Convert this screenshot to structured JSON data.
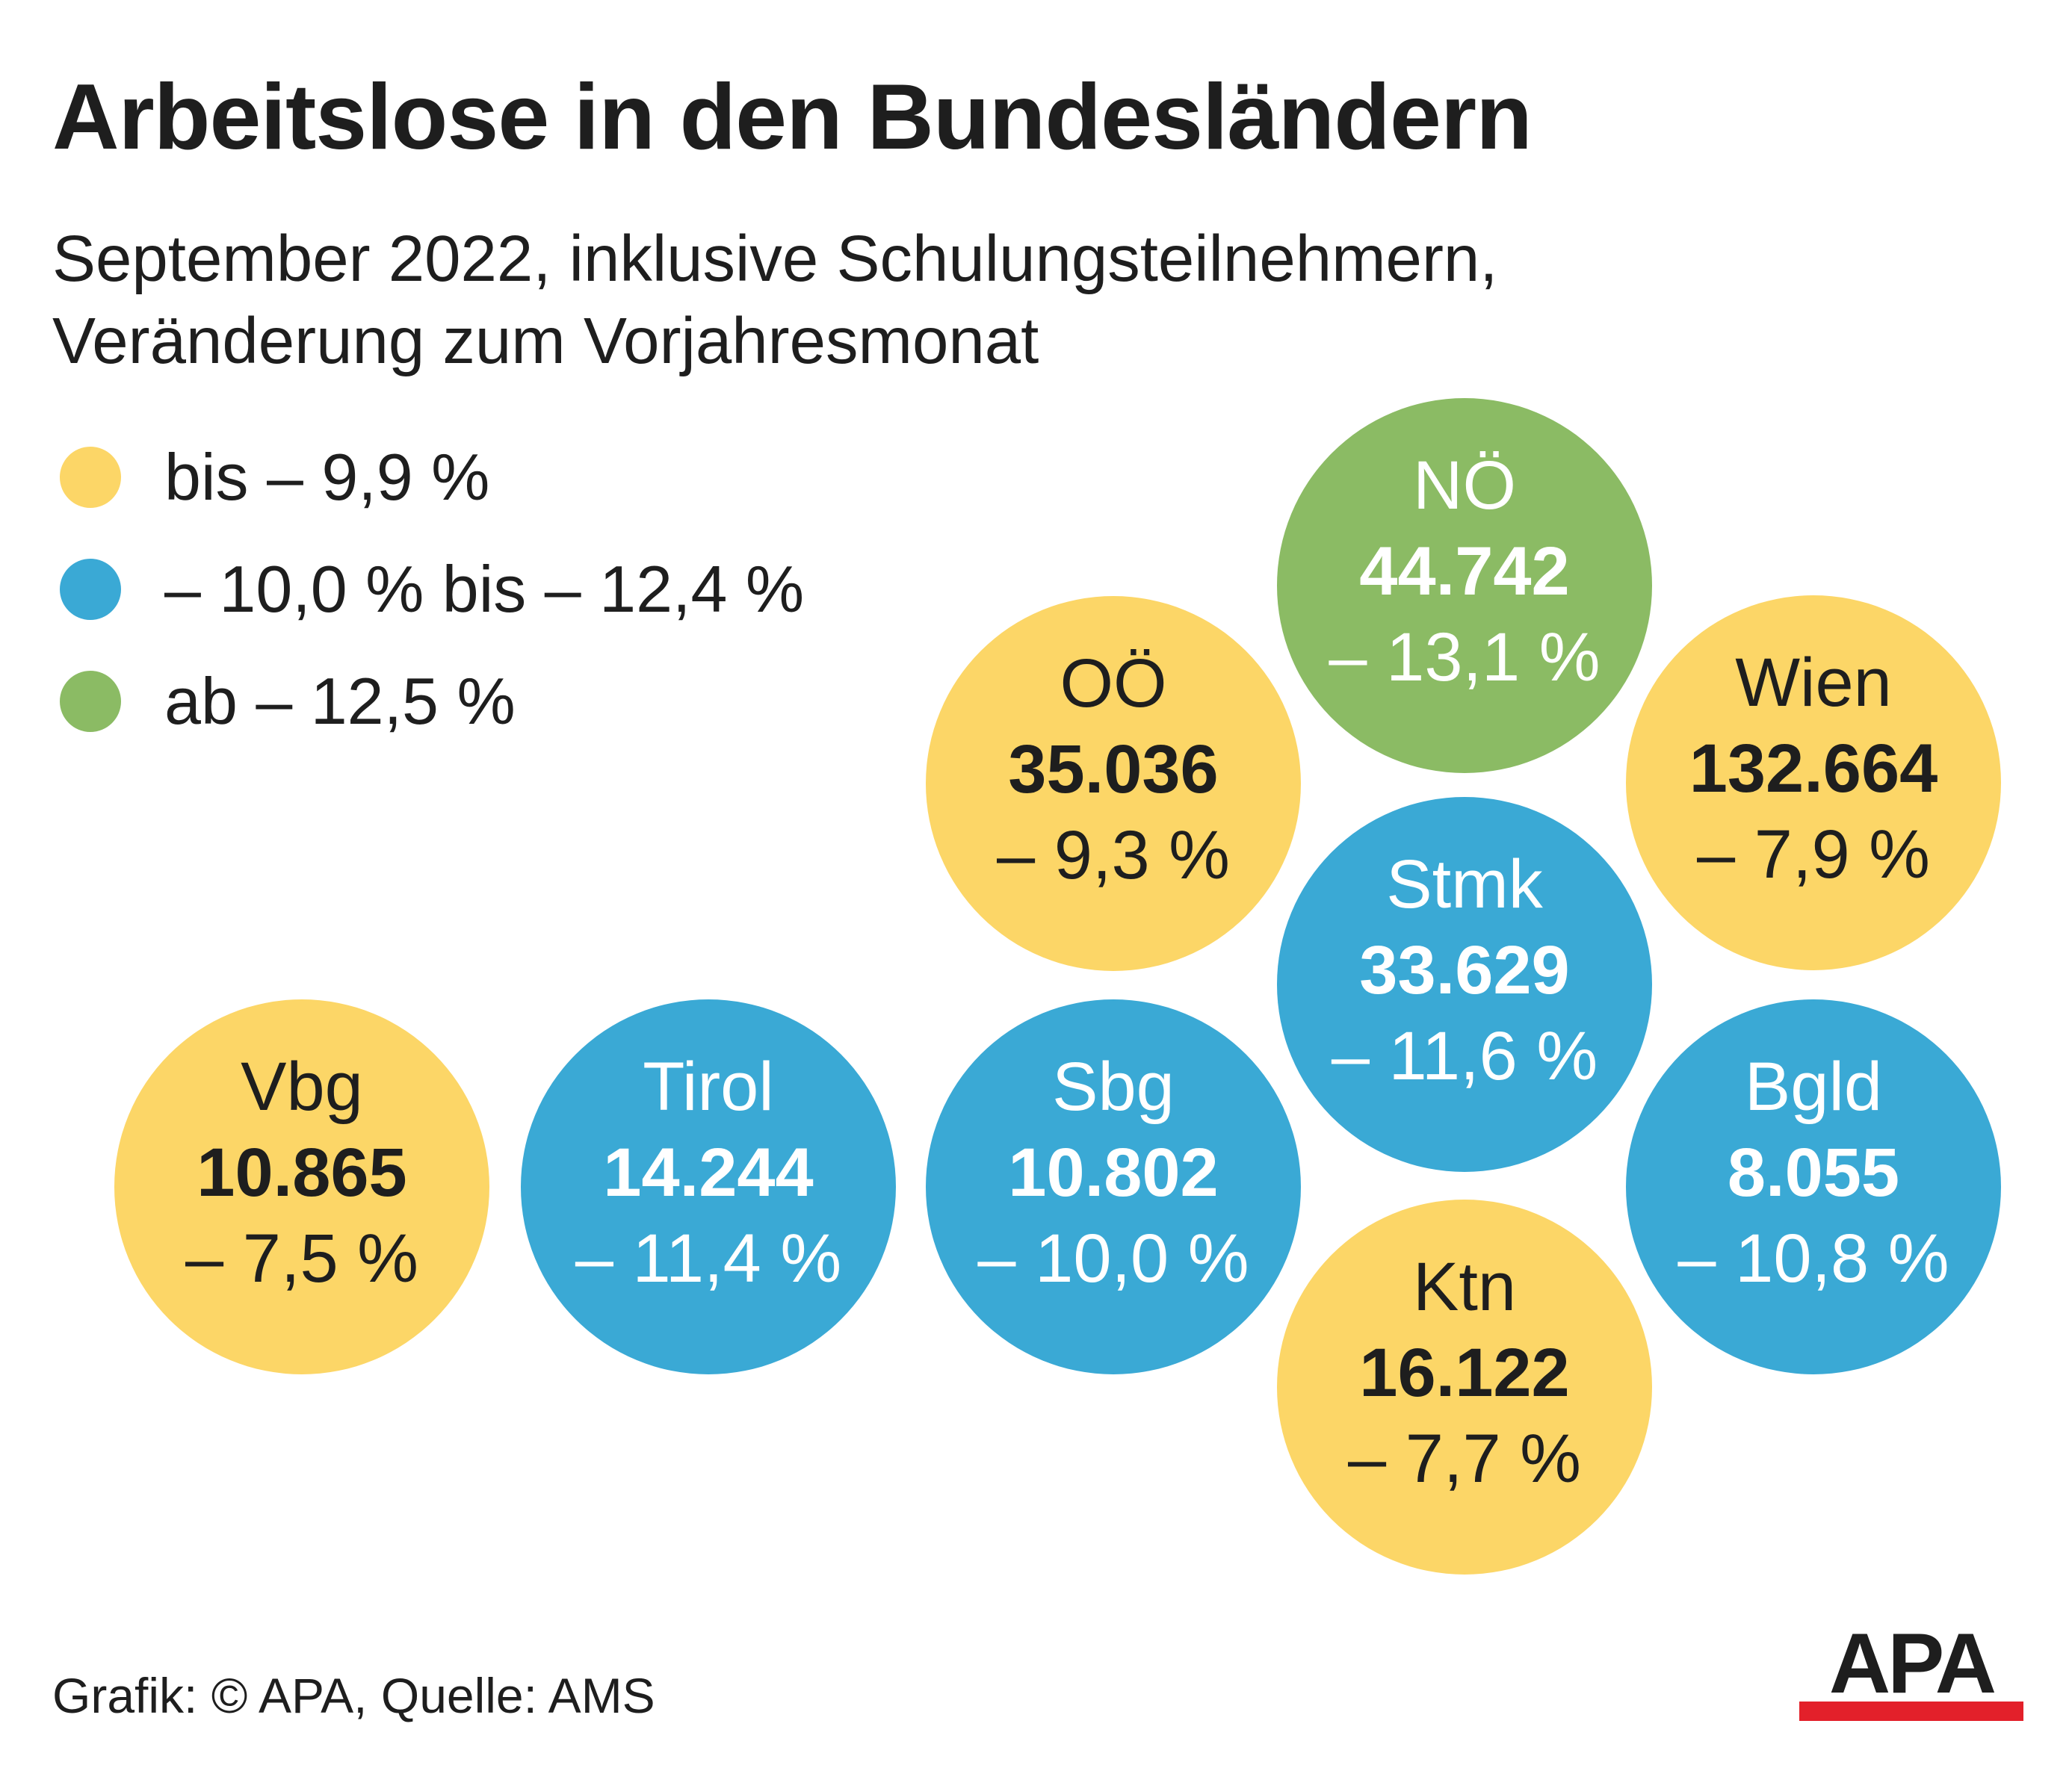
{
  "title": "Arbeitslose in den Bundesländern",
  "subtitle_line1": "September 2022, inklusive Schulungsteilnehmern,",
  "subtitle_line2": "Veränderung zum Vorjahresmonat",
  "colors": {
    "yellow": "#fcd667",
    "blue": "#3aa9d5",
    "green": "#8bbb64",
    "text_dark": "#1e1e1e",
    "apa_red": "#e3202a"
  },
  "legend": [
    {
      "label": "bis – 9,9 %",
      "color": "#fcd667"
    },
    {
      "label": "– 10,0 % bis – 12,4 %",
      "color": "#3aa9d5"
    },
    {
      "label": "ab – 12,5 %",
      "color": "#8bbb64"
    }
  ],
  "chart_data": {
    "type": "bubble",
    "title": "Arbeitslose in den Bundesländern",
    "subtitle": "September 2022, inklusive Schulungsteilnehmern, Veränderung zum Vorjahresmonat",
    "states": [
      {
        "name": "NÖ",
        "value": "44.742",
        "change": "– 13,1 %",
        "change_pct": -13.1,
        "category": "green"
      },
      {
        "name": "OÖ",
        "value": "35.036",
        "change": "– 9,3 %",
        "change_pct": -9.3,
        "category": "yellow"
      },
      {
        "name": "Wien",
        "value": "132.664",
        "change": "– 7,9 %",
        "change_pct": -7.9,
        "category": "yellow"
      },
      {
        "name": "Stmk",
        "value": "33.629",
        "change": "– 11,6 %",
        "change_pct": -11.6,
        "category": "blue"
      },
      {
        "name": "Vbg",
        "value": "10.865",
        "change": "– 7,5 %",
        "change_pct": -7.5,
        "category": "yellow"
      },
      {
        "name": "Tirol",
        "value": "14.244",
        "change": "– 11,4 %",
        "change_pct": -11.4,
        "category": "blue"
      },
      {
        "name": "Sbg",
        "value": "10.802",
        "change": "– 10,0 %",
        "change_pct": -10.0,
        "category": "blue"
      },
      {
        "name": "Bgld",
        "value": "8.055",
        "change": "– 10,8 %",
        "change_pct": -10.8,
        "category": "blue"
      },
      {
        "name": "Ktn",
        "value": "16.122",
        "change": "– 7,7 %",
        "change_pct": -7.7,
        "category": "yellow"
      }
    ]
  },
  "footer": "Grafik: © APA, Quelle: AMS",
  "logo_text": "APA"
}
